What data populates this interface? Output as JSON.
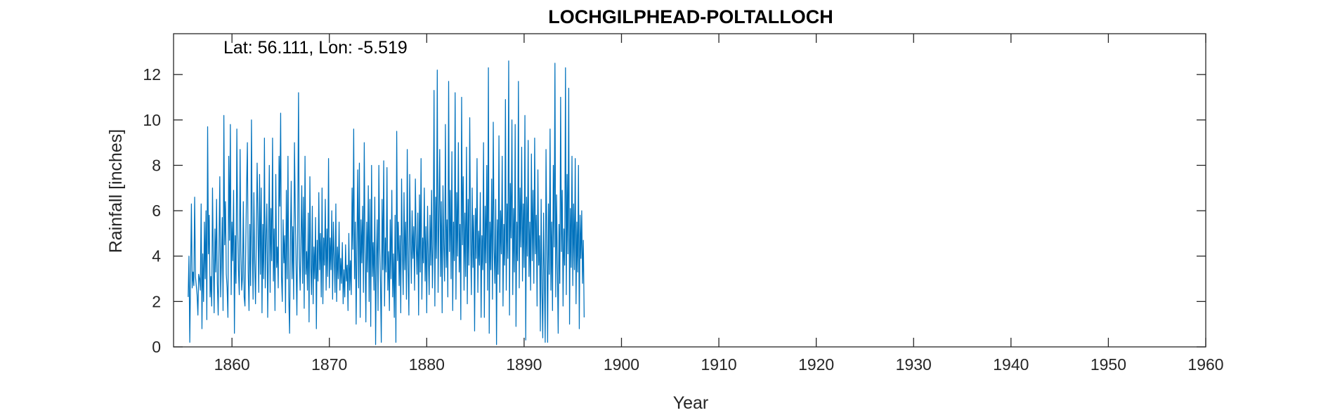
{
  "chart_data": {
    "type": "line",
    "title": "LOCHGILPHEAD-POLTALLOCH",
    "annotation": "Lat: 56.111, Lon: -5.519",
    "xlabel": "Year",
    "ylabel": "Rainfall [inches]",
    "xlim": [
      1854,
      1960
    ],
    "ylim": [
      0,
      13.8
    ],
    "xticks": [
      1860,
      1870,
      1880,
      1890,
      1900,
      1910,
      1920,
      1930,
      1940,
      1950,
      1960
    ],
    "yticks": [
      0,
      2,
      4,
      6,
      8,
      10,
      12
    ],
    "grid": false,
    "series": [
      {
        "color": "#0072BD",
        "start_year": 1855.5,
        "step_years": 0.0833333,
        "values": [
          2.2,
          4.0,
          0.2,
          3.1,
          6.3,
          2.6,
          3.3,
          2.7,
          6.6,
          3.1,
          2.7,
          2.3,
          1.4,
          3.2,
          3.0,
          2.5,
          6.3,
          0.8,
          4.1,
          2.0,
          5.5,
          3.0,
          6.0,
          1.2,
          9.7,
          4.1,
          5.8,
          2.2,
          3.1,
          1.8,
          7.0,
          3.9,
          1.5,
          5.2,
          3.3,
          6.5,
          2.8,
          1.4,
          4.4,
          7.5,
          2.2,
          3.8,
          5.7,
          1.6,
          10.2,
          4.5,
          6.4,
          3.2,
          2.6,
          1.3,
          8.4,
          4.7,
          9.8,
          2.3,
          5.5,
          3.8,
          6.9,
          0.6,
          4.9,
          2.8,
          9.6,
          5.2,
          3.4,
          2.3,
          8.7,
          4.2,
          2.5,
          3.1,
          6.4,
          2.2,
          1.8,
          4.5,
          7.0,
          9.0,
          3.3,
          1.6,
          5.4,
          2.7,
          10.0,
          4.6,
          2.1,
          6.8,
          3.7,
          1.9,
          4.8,
          8.1,
          5.5,
          2.4,
          7.6,
          3.2,
          7.0,
          1.5,
          5.4,
          3.0,
          9.2,
          2.6,
          4.9,
          6.3,
          1.3,
          4.3,
          8.0,
          2.4,
          6.1,
          3.8,
          9.2,
          2.9,
          5.2,
          1.6,
          7.6,
          3.5,
          4.4,
          2.6,
          8.4,
          6.2,
          10.3,
          3.1,
          2.0,
          5.6,
          3.7,
          4.9,
          1.5,
          6.9,
          3.0,
          8.4,
          2.2,
          0.6,
          4.6,
          7.3,
          3.0,
          5.3,
          2.1,
          9.0,
          6.0,
          3.6,
          1.4,
          5.3,
          11.2,
          3.9,
          2.5,
          4.6,
          7.1,
          2.8,
          6.6,
          1.7,
          8.4,
          3.2,
          4.2,
          2.5,
          5.9,
          1.1,
          7.5,
          3.6,
          2.3,
          6.2,
          1.9,
          4.4,
          3.0,
          5.7,
          0.8,
          4.7,
          2.9,
          6.8,
          3.4,
          5.0,
          2.2,
          7.0,
          1.9,
          4.8,
          3.6,
          6.5,
          2.5,
          5.2,
          3.1,
          8.3,
          2.6,
          4.8,
          3.4,
          6.0,
          2.1,
          5.5,
          3.9,
          2.4,
          6.3,
          2.0,
          4.4,
          3.0,
          5.5,
          2.5,
          3.9,
          2.8,
          4.6,
          1.9,
          3.4,
          2.2,
          4.5,
          2.9,
          3.6,
          1.6,
          5.0,
          2.5,
          3.8,
          2.3,
          7.0,
          4.3,
          9.6,
          3.0,
          5.5,
          1.0,
          4.6,
          7.8,
          2.6,
          8.1,
          1.3,
          5.6,
          3.7,
          6.2,
          2.4,
          9.0,
          4.2,
          1.1,
          5.5,
          3.3,
          7.1,
          2.0,
          6.5,
          0.9,
          8.0,
          3.1,
          4.6,
          2.5,
          6.6,
          0.1,
          3.9,
          5.6,
          1.6,
          8.0,
          4.4,
          2.8,
          0.2,
          6.5,
          3.4,
          8.2,
          1.8,
          4.8,
          3.3,
          7.9,
          2.5,
          4.2,
          1.6,
          5.6,
          3.0,
          6.9,
          2.2,
          4.1,
          1.3,
          5.8,
          0.2,
          9.5,
          3.8,
          5.5,
          2.7,
          4.9,
          1.5,
          7.4,
          4.3,
          2.3,
          6.8,
          3.4,
          5.5,
          2.1,
          8.7,
          3.6,
          1.4,
          7.6,
          4.8,
          2.8,
          6.0,
          3.9,
          5.3,
          2.5,
          7.4,
          4.5,
          3.2,
          5.9,
          1.4,
          6.7,
          3.3,
          8.3,
          2.1,
          4.8,
          3.7,
          7.0,
          2.9,
          5.3,
          1.5,
          6.2,
          4.0,
          2.3,
          5.8,
          3.6,
          6.9,
          2.6,
          4.5,
          11.3,
          1.8,
          6.6,
          3.9,
          12.2,
          2.4,
          5.8,
          8.7,
          3.1,
          6.4,
          1.5,
          7.1,
          4.5,
          2.9,
          9.8,
          3.5,
          5.6,
          2.2,
          11.7,
          4.2,
          6.9,
          3.0,
          8.6,
          1.6,
          5.5,
          3.8,
          11.2,
          2.1,
          6.8,
          4.0,
          9.0,
          3.3,
          5.4,
          1.2,
          11.0,
          4.5,
          7.5,
          2.5,
          5.9,
          3.1,
          8.8,
          1.9,
          6.5,
          3.6,
          10.1,
          4.8,
          2.3,
          7.0,
          3.5,
          5.8,
          0.7,
          6.1,
          3.9,
          8.3,
          2.4,
          5.1,
          3.6,
          6.8,
          1.3,
          4.9,
          3.4,
          9.0,
          1.3,
          6.2,
          3.7,
          8.0,
          2.5,
          12.3,
          0.6,
          5.5,
          3.4,
          7.4,
          2.1,
          9.9,
          4.3,
          2.8,
          6.5,
          0.1,
          5.6,
          3.2,
          9.3,
          2.4,
          6.0,
          4.1,
          8.4,
          1.8,
          5.4,
          3.6,
          10.9,
          2.5,
          6.3,
          3.9,
          12.6,
          1.4,
          7.2,
          4.8,
          10.0,
          2.3,
          6.1,
          3.3,
          9.8,
          0.9,
          5.5,
          3.8,
          11.7,
          2.6,
          7.0,
          4.4,
          8.8,
          2.9,
          6.3,
          3.5,
          10.2,
          0.3,
          6.6,
          4.0,
          9.1,
          3.1,
          5.5,
          2.5,
          8.5,
          3.8,
          6.9,
          2.8,
          9.2,
          4.1,
          5.8,
          1.8,
          7.8,
          3.6,
          4.9,
          0.7,
          6.5,
          2.4,
          0.4,
          5.9,
          3.0,
          0.2,
          8.7,
          4.6,
          0.2,
          6.3,
          3.2,
          9.6,
          2.5,
          5.5,
          1.6,
          8.0,
          4.4,
          12.5,
          2.2,
          6.7,
          3.5,
          0.6,
          5.4,
          2.8,
          11.0,
          4.2,
          6.9,
          1.8,
          5.2,
          3.6,
          12.3,
          2.3,
          7.6,
          4.1,
          11.4,
          1.0,
          6.1,
          3.5,
          8.4,
          2.7,
          6.3,
          3.4,
          8.3,
          1.9,
          5.5,
          3.3,
          8.0,
          0.8,
          5.8,
          3.9,
          6.0,
          2.8,
          4.7,
          1.3
        ]
      }
    ]
  }
}
